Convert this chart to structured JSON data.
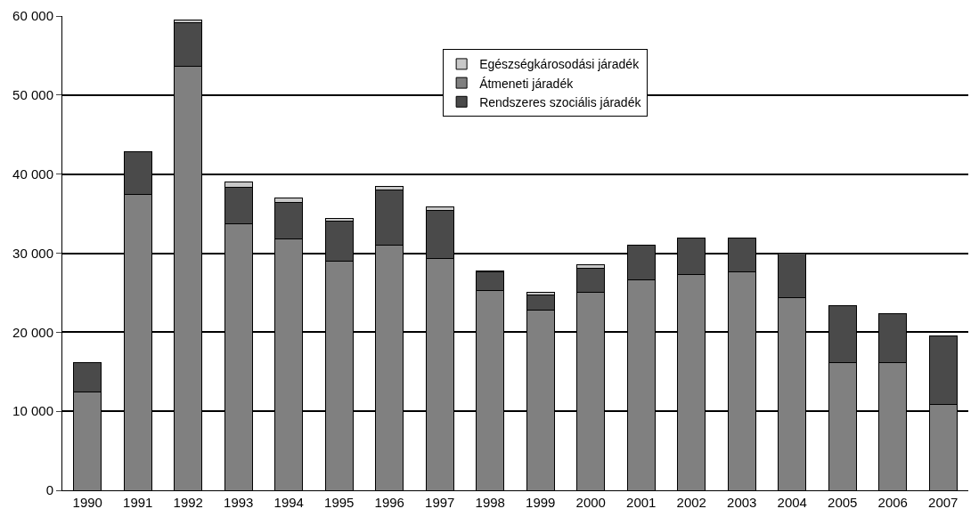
{
  "chart_data": {
    "type": "bar",
    "stacked": true,
    "categories": [
      "1990",
      "1991",
      "1992",
      "1993",
      "1994",
      "1995",
      "1996",
      "1997",
      "1998",
      "1999",
      "2000",
      "2001",
      "2002",
      "2003",
      "2004",
      "2005",
      "2006",
      "2007"
    ],
    "series": [
      {
        "name": "Átmeneti járadék",
        "color": "#808080",
        "values": [
          12400,
          37400,
          53600,
          33700,
          31800,
          29000,
          31000,
          29300,
          25300,
          22800,
          25000,
          26600,
          27300,
          27600,
          24400,
          16100,
          16100,
          10900
        ]
      },
      {
        "name": "Rendszeres szociális járadék",
        "color": "#4a4a4a",
        "values": [
          3700,
          5400,
          5600,
          4600,
          4600,
          5000,
          7000,
          6100,
          2300,
          1900,
          3100,
          4400,
          4600,
          4300,
          5600,
          7300,
          6200,
          8600
        ]
      },
      {
        "name": "Egészségkárosodási járadék",
        "color": "#c8c8c8",
        "values": [
          null,
          null,
          300,
          700,
          600,
          400,
          400,
          500,
          200,
          400,
          400,
          null,
          null,
          null,
          null,
          null,
          null,
          null
        ]
      }
    ],
    "ylim": [
      0,
      60000
    ],
    "yticks": [
      0,
      {
        "value": 10000,
        "label": "10 000"
      },
      {
        "value": 20000,
        "label": "20 000"
      },
      {
        "value": 30000,
        "label": "30 000"
      },
      {
        "value": 40000,
        "label": "40 000"
      },
      {
        "value": 50000,
        "label": "50 000"
      },
      {
        "value": 60000,
        "label": "60 000"
      }
    ],
    "grid": "y",
    "legend": "top"
  }
}
